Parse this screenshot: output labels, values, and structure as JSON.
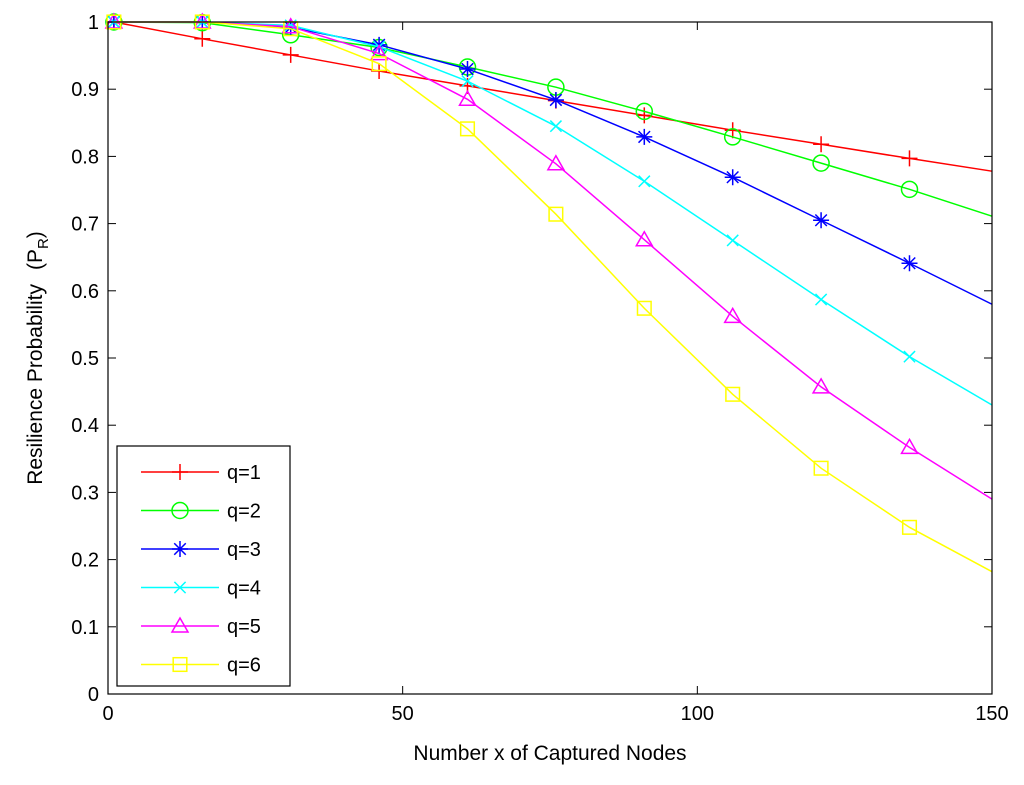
{
  "chart_data": {
    "type": "line",
    "title": "",
    "xlabel": "Number x of Captured Nodes",
    "ylabel": "Resilience Probability",
    "ylabel_symbol": "(P",
    "ylabel_subscript": "R",
    "ylabel_close": ")",
    "xlim": [
      0,
      150
    ],
    "ylim": [
      0,
      1
    ],
    "xticks": [
      0,
      50,
      100,
      150
    ],
    "yticks": [
      0,
      0.1,
      0.2,
      0.3,
      0.4,
      0.5,
      0.6,
      0.7,
      0.8,
      0.9,
      1
    ],
    "grid": false,
    "legend_position": "bottom-left",
    "x": [
      1,
      16,
      31,
      46,
      61,
      76,
      91,
      106,
      121,
      136,
      150
    ],
    "series": [
      {
        "name": "q=1",
        "color": "#ff0000",
        "marker": "plus",
        "values": [
          1.0,
          0.975,
          0.951,
          0.927,
          0.905,
          0.883,
          0.861,
          0.839,
          0.818,
          0.797,
          0.778
        ]
      },
      {
        "name": "q=2",
        "color": "#00ff00",
        "marker": "circle",
        "values": [
          1.0,
          0.999,
          0.981,
          0.962,
          0.933,
          0.903,
          0.867,
          0.829,
          0.79,
          0.751,
          0.711
        ]
      },
      {
        "name": "q=3",
        "color": "#0000ff",
        "marker": "star",
        "values": [
          1.0,
          1.0,
          0.992,
          0.966,
          0.93,
          0.884,
          0.829,
          0.769,
          0.705,
          0.641,
          0.58
        ]
      },
      {
        "name": "q=4",
        "color": "#00ffff",
        "marker": "x",
        "values": [
          1.0,
          1.0,
          0.995,
          0.963,
          0.912,
          0.845,
          0.763,
          0.675,
          0.587,
          0.502,
          0.43
        ]
      },
      {
        "name": "q=5",
        "color": "#ff00ff",
        "marker": "triangle",
        "values": [
          1.0,
          1.0,
          0.993,
          0.953,
          0.885,
          0.789,
          0.676,
          0.562,
          0.457,
          0.367,
          0.29
        ]
      },
      {
        "name": "q=6",
        "color": "#ffff00",
        "marker": "square",
        "values": [
          1.0,
          1.0,
          0.99,
          0.938,
          0.841,
          0.714,
          0.574,
          0.446,
          0.336,
          0.248,
          0.182
        ]
      }
    ]
  }
}
